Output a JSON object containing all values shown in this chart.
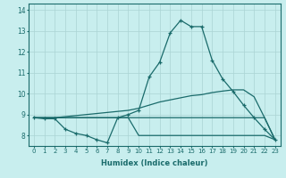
{
  "xlabel": "Humidex (Indice chaleur)",
  "bg_color": "#c8eeee",
  "line_color": "#1a6b6b",
  "grid_color": "#aad4d4",
  "xlim": [
    -0.5,
    23.5
  ],
  "ylim": [
    7.5,
    14.3
  ],
  "yticks": [
    8,
    9,
    10,
    11,
    12,
    13,
    14
  ],
  "xticks": [
    0,
    1,
    2,
    3,
    4,
    5,
    6,
    7,
    8,
    9,
    10,
    11,
    12,
    13,
    14,
    15,
    16,
    17,
    18,
    19,
    20,
    21,
    22,
    23
  ],
  "series_main": [
    8.85,
    8.8,
    8.8,
    8.3,
    8.1,
    8.0,
    7.8,
    7.65,
    8.85,
    9.0,
    9.2,
    10.8,
    11.5,
    12.9,
    13.5,
    13.2,
    13.2,
    11.6,
    10.7,
    10.1,
    9.45,
    8.85,
    8.3,
    7.8
  ],
  "series_upper1": [
    8.85,
    8.85,
    8.85,
    8.9,
    8.95,
    9.0,
    9.05,
    9.1,
    9.15,
    9.2,
    9.3,
    9.45,
    9.6,
    9.7,
    9.8,
    9.9,
    9.95,
    10.05,
    10.12,
    10.18,
    10.18,
    9.85,
    8.85,
    7.8
  ],
  "series_upper2": [
    8.85,
    8.85,
    8.85,
    8.85,
    8.85,
    8.85,
    8.85,
    8.85,
    8.85,
    8.85,
    8.85,
    8.85,
    8.85,
    8.85,
    8.85,
    8.85,
    8.85,
    8.85,
    8.85,
    8.85,
    8.85,
    8.85,
    8.85,
    7.8
  ],
  "series_lower": [
    8.85,
    8.85,
    8.85,
    8.85,
    8.85,
    8.85,
    8.85,
    8.85,
    8.85,
    8.85,
    8.0,
    8.0,
    8.0,
    8.0,
    8.0,
    8.0,
    8.0,
    8.0,
    8.0,
    8.0,
    8.0,
    8.0,
    8.0,
    7.8
  ]
}
